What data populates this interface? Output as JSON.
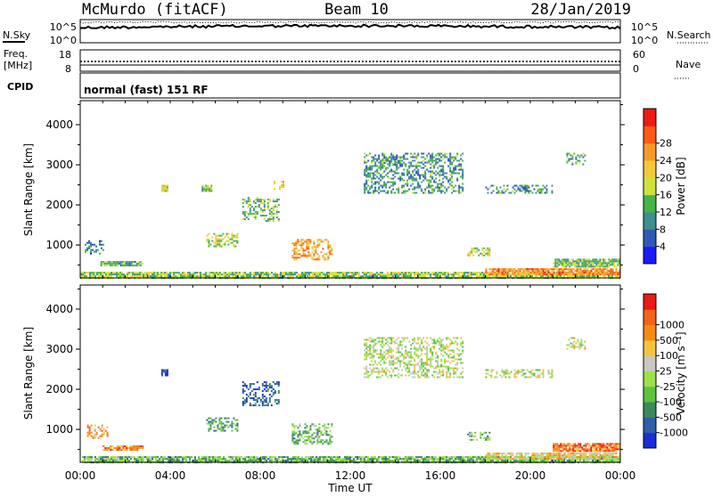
{
  "header": {
    "station": "McMurdo (fitACF)",
    "beam": "Beam 10",
    "date": "28/Jan/2019"
  },
  "panels": {
    "nsky": {
      "label": "N.Sky",
      "left_ticks": [
        "10^5",
        "10^0"
      ],
      "right_ticks": [
        "10^5",
        "10^0"
      ],
      "right_label": "N.Search"
    },
    "freq": {
      "label_line1": "Freq.",
      "label_line2": "[MHz]",
      "left_ticks": [
        "18",
        "8"
      ],
      "right_ticks": [
        "60",
        "0"
      ],
      "right_label": "Nave"
    },
    "cpid": {
      "label": "CPID",
      "text": "normal (fast) 151 RF"
    }
  },
  "chart_data": [
    {
      "type": "heatmap",
      "name": "power",
      "ylabel": "Slant Range [km]",
      "y_ticks": [
        "1000",
        "2000",
        "3000",
        "4000"
      ],
      "ylim": [
        180,
        4600
      ],
      "colorbar_label": "Power [dB]",
      "colorbar_ticks": [
        "4",
        "8",
        "12",
        "16",
        "20",
        "24",
        "28"
      ],
      "colorbar_colors": [
        "#1919ff",
        "#2f5ab4",
        "#3f8f8f",
        "#46b34a",
        "#cce23c",
        "#f3c83a",
        "#f59a2a",
        "#ff5a14",
        "#ee1b14"
      ],
      "echo_regions_km": [
        {
          "t0": 0.0,
          "t1": 24.0,
          "r0": 180,
          "r1": 330,
          "level": 0.45
        },
        {
          "t0": 0.2,
          "t1": 1.0,
          "r0": 780,
          "r1": 1120,
          "level": 0.25
        },
        {
          "t0": 0.9,
          "t1": 2.8,
          "r0": 470,
          "r1": 600,
          "level": 0.35
        },
        {
          "t0": 3.6,
          "t1": 3.9,
          "r0": 2350,
          "r1": 2500,
          "level": 0.5
        },
        {
          "t0": 5.4,
          "t1": 5.8,
          "r0": 2350,
          "r1": 2500,
          "level": 0.45
        },
        {
          "t0": 5.6,
          "t1": 7.0,
          "r0": 950,
          "r1": 1300,
          "level": 0.5
        },
        {
          "t0": 7.2,
          "t1": 8.8,
          "r0": 1600,
          "r1": 2200,
          "level": 0.4
        },
        {
          "t0": 8.6,
          "t1": 9.0,
          "r0": 2400,
          "r1": 2600,
          "level": 0.55
        },
        {
          "t0": 9.4,
          "t1": 11.2,
          "r0": 620,
          "r1": 1150,
          "level": 0.7
        },
        {
          "t0": 12.6,
          "t1": 17.0,
          "r0": 2300,
          "r1": 3300,
          "level": 0.3
        },
        {
          "t0": 13.4,
          "t1": 14.2,
          "r0": 3000,
          "r1": 3200,
          "level": 0.35
        },
        {
          "t0": 17.2,
          "t1": 18.2,
          "r0": 740,
          "r1": 940,
          "level": 0.5
        },
        {
          "t0": 18.0,
          "t1": 21.0,
          "r0": 2300,
          "r1": 2500,
          "level": 0.3
        },
        {
          "t0": 18.0,
          "t1": 24.0,
          "r0": 260,
          "r1": 420,
          "level": 0.75
        },
        {
          "t0": 21.0,
          "t1": 24.0,
          "r0": 480,
          "r1": 660,
          "level": 0.4
        },
        {
          "t0": 21.6,
          "t1": 22.4,
          "r0": 3000,
          "r1": 3300,
          "level": 0.35
        }
      ]
    },
    {
      "type": "heatmap",
      "name": "velocity",
      "ylabel": "Slant Range [km]",
      "y_ticks": [
        "1000",
        "2000",
        "3000",
        "4000"
      ],
      "ylim": [
        180,
        4600
      ],
      "xlabel": "Time UT",
      "x_ticks": [
        "00:00",
        "04:00",
        "08:00",
        "12:00",
        "16:00",
        "20:00",
        "00:00"
      ],
      "xlim": [
        0,
        24
      ],
      "colorbar_label": "Velocity [m s⁻¹]",
      "colorbar_ticks": [
        "1000",
        "500",
        "100",
        "25",
        "-25",
        "-100",
        "-500",
        "-1000"
      ],
      "colorbar_colors": [
        "#1a2dd6",
        "#2e5fa8",
        "#3c8a5c",
        "#5cc33d",
        "#9ce04a",
        "#c8c8c0",
        "#f5c340",
        "#f58a14",
        "#f2641a",
        "#ea1a14"
      ],
      "echo_regions_km": [
        {
          "t0": 0.0,
          "t1": 24.0,
          "r0": 180,
          "r1": 330,
          "level": 0.35
        },
        {
          "t0": 0.3,
          "t1": 1.2,
          "r0": 780,
          "r1": 1120,
          "level": 0.7
        },
        {
          "t0": 1.0,
          "t1": 2.8,
          "r0": 470,
          "r1": 600,
          "level": 0.8
        },
        {
          "t0": 3.6,
          "t1": 3.9,
          "r0": 2350,
          "r1": 2500,
          "level": 0.15
        },
        {
          "t0": 5.6,
          "t1": 7.0,
          "r0": 950,
          "r1": 1300,
          "level": 0.3
        },
        {
          "t0": 7.2,
          "t1": 8.8,
          "r0": 1600,
          "r1": 2200,
          "level": 0.15
        },
        {
          "t0": 9.4,
          "t1": 11.2,
          "r0": 620,
          "r1": 1150,
          "level": 0.35
        },
        {
          "t0": 12.6,
          "t1": 17.0,
          "r0": 2300,
          "r1": 3300,
          "level": 0.5
        },
        {
          "t0": 17.2,
          "t1": 18.2,
          "r0": 740,
          "r1": 940,
          "level": 0.35
        },
        {
          "t0": 18.0,
          "t1": 21.0,
          "r0": 2300,
          "r1": 2500,
          "level": 0.5
        },
        {
          "t0": 18.0,
          "t1": 24.0,
          "r0": 260,
          "r1": 420,
          "level": 0.6
        },
        {
          "t0": 21.0,
          "t1": 24.0,
          "r0": 480,
          "r1": 660,
          "level": 0.8
        },
        {
          "t0": 21.6,
          "t1": 22.4,
          "r0": 3000,
          "r1": 3300,
          "level": 0.55
        }
      ]
    }
  ]
}
